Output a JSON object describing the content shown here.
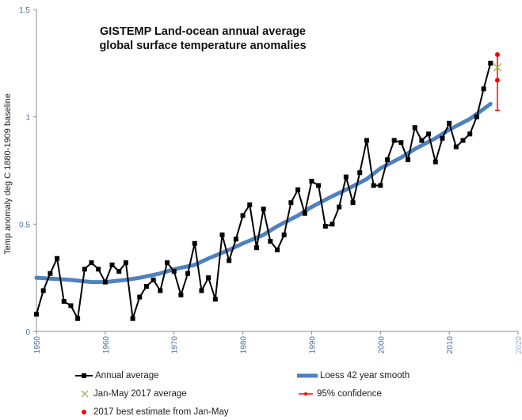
{
  "chart_data": {
    "type": "line",
    "title": [
      "GISTEMP Land-ocean annual average",
      "global surface temperature anomalies"
    ],
    "xlabel": "",
    "ylabel": "Temp anomaly deg C 1880-1909 baseline",
    "xlim": [
      1950,
      2020
    ],
    "ylim": [
      0,
      1.5
    ],
    "xticks": [
      "1950",
      "1960",
      "1970",
      "1980",
      "1990",
      "2000",
      "2010",
      "2020"
    ],
    "yticks": [
      "0",
      "0.5",
      "1",
      "1.5"
    ],
    "series": [
      {
        "name": "Annual average",
        "color": "#000000",
        "marker": "square",
        "x": [
          1950,
          1951,
          1952,
          1953,
          1954,
          1955,
          1956,
          1957,
          1958,
          1959,
          1960,
          1961,
          1962,
          1963,
          1964,
          1965,
          1966,
          1967,
          1968,
          1969,
          1970,
          1971,
          1972,
          1973,
          1974,
          1975,
          1976,
          1977,
          1978,
          1979,
          1980,
          1981,
          1982,
          1983,
          1984,
          1985,
          1986,
          1987,
          1988,
          1989,
          1990,
          1991,
          1992,
          1993,
          1994,
          1995,
          1996,
          1997,
          1998,
          1999,
          2000,
          2001,
          2002,
          2003,
          2004,
          2005,
          2006,
          2007,
          2008,
          2009,
          2010,
          2011,
          2012,
          2013,
          2014,
          2015,
          2016
        ],
        "y": [
          0.08,
          0.19,
          0.27,
          0.34,
          0.14,
          0.12,
          0.06,
          0.29,
          0.32,
          0.29,
          0.23,
          0.31,
          0.28,
          0.32,
          0.06,
          0.16,
          0.21,
          0.24,
          0.19,
          0.32,
          0.28,
          0.17,
          0.27,
          0.41,
          0.19,
          0.25,
          0.15,
          0.45,
          0.33,
          0.43,
          0.54,
          0.59,
          0.39,
          0.57,
          0.42,
          0.38,
          0.45,
          0.6,
          0.66,
          0.55,
          0.7,
          0.68,
          0.49,
          0.5,
          0.58,
          0.72,
          0.6,
          0.74,
          0.89,
          0.68,
          0.68,
          0.8,
          0.89,
          0.88,
          0.8,
          0.95,
          0.89,
          0.92,
          0.79,
          0.9,
          0.97,
          0.86,
          0.89,
          0.92,
          1.0,
          1.13,
          1.25
        ]
      },
      {
        "name": "Loess 42 year smooth",
        "color": "#4f81bd",
        "x": [
          1950,
          1955,
          1958,
          1960,
          1963,
          1965,
          1968,
          1970,
          1973,
          1975,
          1978,
          1980,
          1983,
          1985,
          1988,
          1990,
          1993,
          1995,
          1998,
          2000,
          2003,
          2005,
          2008,
          2010,
          2013,
          2016
        ],
        "y": [
          0.25,
          0.24,
          0.23,
          0.23,
          0.24,
          0.25,
          0.27,
          0.29,
          0.31,
          0.34,
          0.38,
          0.41,
          0.45,
          0.49,
          0.54,
          0.58,
          0.63,
          0.66,
          0.71,
          0.76,
          0.81,
          0.85,
          0.9,
          0.94,
          0.99,
          1.06
        ]
      },
      {
        "name": "Jan-May 2017 average",
        "color": "#9bbb59",
        "marker": "x",
        "x": [
          2017
        ],
        "y": [
          1.23
        ]
      },
      {
        "name": "95% confidence",
        "color": "#ff0000",
        "x": [
          2017
        ],
        "low": [
          1.03
        ],
        "high": [
          1.29
        ]
      },
      {
        "name": "2017 best estimate from Jan-May",
        "color": "#ff0000",
        "marker": "dot",
        "x": [
          2017,
          2017
        ],
        "y": [
          1.29,
          1.17
        ]
      }
    ],
    "legend_position": "bottom"
  }
}
